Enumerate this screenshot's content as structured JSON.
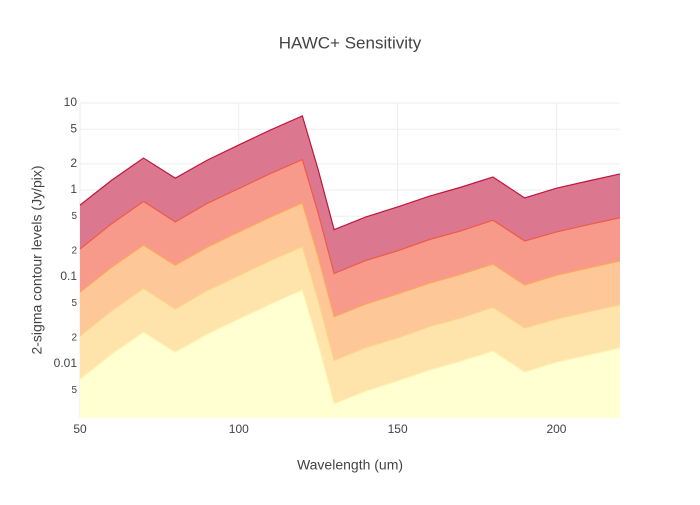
{
  "chart_data": {
    "type": "area",
    "title": "HAWC+ Sensitivity",
    "x_label": "Wavelength (um)",
    "y_label": "2-sigma contour levels (Jy/pix)",
    "x": [
      50,
      60,
      70,
      80,
      90,
      100,
      110,
      120,
      125,
      130,
      140,
      150,
      160,
      170,
      180,
      190,
      200,
      210,
      220
    ],
    "series": [
      {
        "color": "#fff3b0",
        "fillcolor": "#ffffd2",
        "values": [
          0.0067,
          0.013,
          0.0233,
          0.0137,
          0.022,
          0.033,
          0.049,
          0.071,
          0.017,
          0.0035,
          0.0049,
          0.0064,
          0.0085,
          0.0108,
          0.0141,
          0.0081,
          0.0105,
          0.0127,
          0.0153
        ]
      },
      {
        "color": "#fdd28a",
        "fillcolor": "#fee3aa",
        "values": [
          0.021,
          0.041,
          0.074,
          0.043,
          0.07,
          0.104,
          0.155,
          0.224,
          0.054,
          0.011,
          0.0155,
          0.02,
          0.027,
          0.034,
          0.045,
          0.026,
          0.033,
          0.04,
          0.048
        ]
      },
      {
        "color": "#fca85a",
        "fillcolor": "#fdc797",
        "values": [
          0.067,
          0.13,
          0.233,
          0.137,
          0.22,
          0.33,
          0.49,
          0.71,
          0.17,
          0.035,
          0.049,
          0.064,
          0.085,
          0.108,
          0.141,
          0.081,
          0.105,
          0.127,
          0.153
        ]
      },
      {
        "color": "#ef5a45",
        "fillcolor": "#f89a8b",
        "values": [
          0.21,
          0.41,
          0.74,
          0.43,
          0.7,
          1.04,
          1.55,
          2.24,
          0.54,
          0.11,
          0.155,
          0.2,
          0.27,
          0.34,
          0.45,
          0.26,
          0.33,
          0.4,
          0.48
        ]
      },
      {
        "color": "#c0163c",
        "fillcolor": "#db7890",
        "values": [
          0.67,
          1.3,
          2.33,
          1.37,
          2.2,
          3.3,
          4.9,
          7.1,
          1.7,
          0.35,
          0.49,
          0.64,
          0.85,
          1.08,
          1.41,
          0.81,
          1.05,
          1.27,
          1.53
        ]
      }
    ],
    "xlim": [
      50,
      220
    ],
    "xticks": [
      50,
      100,
      150,
      200
    ],
    "log_y": true,
    "ylim": [
      0.0024,
      10
    ],
    "yticks": [
      0.01,
      {
        "value": 0.005,
        "label": "5"
      },
      {
        "value": 0.02,
        "label": "2"
      },
      {
        "value": 0.05,
        "label": "5"
      },
      0.1,
      {
        "value": 0.2,
        "label": "2"
      },
      {
        "value": 0.5,
        "label": "5"
      },
      1,
      2,
      5,
      10
    ],
    "grid": true
  }
}
